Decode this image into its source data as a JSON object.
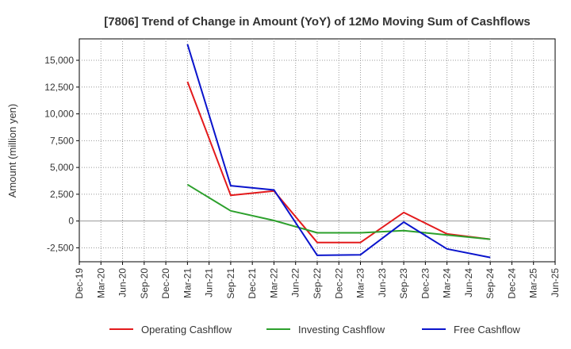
{
  "chart_data": {
    "type": "line",
    "title": "[7806]  Trend of Change in Amount (YoY) of 12Mo Moving Sum of Cashflows",
    "xlabel": "",
    "ylabel": "Amount (million yen)",
    "ylim": [
      -3800,
      17000
    ],
    "yticks": [
      15000,
      12500,
      10000,
      7500,
      5000,
      2500,
      0,
      -2500
    ],
    "ytick_labels": [
      "15,000",
      "12,500",
      "10,000",
      "7,500",
      "5,000",
      "2,500",
      "0",
      "-2,500"
    ],
    "categories": [
      "Dec-19",
      "Mar-20",
      "Jun-20",
      "Sep-20",
      "Dec-20",
      "Mar-21",
      "Jun-21",
      "Sep-21",
      "Dec-21",
      "Mar-22",
      "Jun-22",
      "Sep-22",
      "Dec-22",
      "Mar-23",
      "Jun-23",
      "Sep-23",
      "Dec-23",
      "Mar-24",
      "Jun-24",
      "Sep-24",
      "Dec-24",
      "Mar-25",
      "Jun-25"
    ],
    "grid": true,
    "legend_position": "bottom",
    "series": [
      {
        "name": "Operating Cashflow",
        "color": "#e31a1c",
        "points": [
          [
            "Mar-21",
            13000
          ],
          [
            "Sep-21",
            2400
          ],
          [
            "Mar-22",
            2800
          ],
          [
            "Sep-22",
            -2000
          ],
          [
            "Mar-23",
            -2000
          ],
          [
            "Sep-23",
            800
          ],
          [
            "Mar-24",
            -1200
          ],
          [
            "Sep-24",
            -1700
          ]
        ]
      },
      {
        "name": "Investing Cashflow",
        "color": "#2ca02c",
        "points": [
          [
            "Mar-21",
            3400
          ],
          [
            "Sep-21",
            950
          ],
          [
            "Mar-22",
            50
          ],
          [
            "Sep-22",
            -1100
          ],
          [
            "Mar-23",
            -1100
          ],
          [
            "Sep-23",
            -900
          ],
          [
            "Mar-24",
            -1300
          ],
          [
            "Sep-24",
            -1700
          ]
        ]
      },
      {
        "name": "Free Cashflow",
        "color": "#0a14cc",
        "points": [
          [
            "Mar-21",
            16500
          ],
          [
            "Sep-21",
            3300
          ],
          [
            "Mar-22",
            2900
          ],
          [
            "Sep-22",
            -3200
          ],
          [
            "Mar-23",
            -3150
          ],
          [
            "Sep-23",
            -100
          ],
          [
            "Mar-24",
            -2600
          ],
          [
            "Sep-24",
            -3400
          ]
        ]
      }
    ]
  }
}
